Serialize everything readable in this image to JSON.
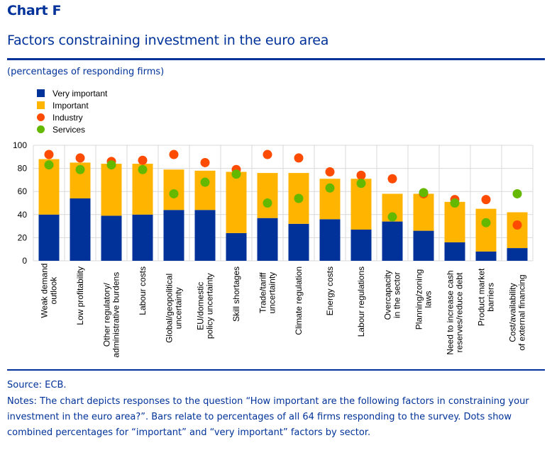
{
  "header": {
    "chart_label": "Chart F",
    "title": "Factors constraining investment in the euro area",
    "units": "(percentages of responding firms)"
  },
  "colors": {
    "very_important": "#003299",
    "important": "#FFB400",
    "industry": "#FF4B00",
    "services": "#65B800",
    "grid": "#D9D9D9",
    "brand_text": "#003299"
  },
  "legend": [
    {
      "label": "Very important",
      "shape": "square",
      "series": "very_important"
    },
    {
      "label": "Important",
      "shape": "square",
      "series": "important"
    },
    {
      "label": "Industry",
      "shape": "dot",
      "series": "industry"
    },
    {
      "label": "Services",
      "shape": "dot",
      "series": "services"
    }
  ],
  "chart_data": {
    "type": "bar",
    "stacked": true,
    "title": "Factors constraining investment in the euro area",
    "xlabel": "",
    "ylabel": "percentages of responding firms",
    "ylim": [
      0,
      100
    ],
    "yticks": [
      0,
      20,
      40,
      60,
      80,
      100
    ],
    "grid": true,
    "legend_position": "top-left",
    "categories": [
      [
        "Weak demand",
        "outlook"
      ],
      [
        "Low profitability"
      ],
      [
        "Other regulatory/",
        "administrative burdens"
      ],
      [
        "Labour costs"
      ],
      [
        "Global/geopolitical",
        "uncertainty"
      ],
      [
        "EU/domestic",
        "policy uncertainty"
      ],
      [
        "Skill shortages"
      ],
      [
        "Trade/tariff",
        "uncertainty"
      ],
      [
        "Climate regulation"
      ],
      [
        "Energy costs"
      ],
      [
        "Labour regulations"
      ],
      [
        "Overcapacity",
        "in the sector"
      ],
      [
        "Planning/zoning",
        "laws"
      ],
      [
        "Need to increase cash",
        "reserves/reduce debt"
      ],
      [
        "Product market",
        "barriers"
      ],
      [
        "Cost/availability",
        "of external financing"
      ]
    ],
    "series": [
      {
        "name": "Very important",
        "kind": "bar",
        "values": [
          40,
          54,
          39,
          40,
          44,
          44,
          24,
          37,
          32,
          36,
          27,
          34,
          26,
          16,
          8,
          11
        ]
      },
      {
        "name": "Important",
        "kind": "bar",
        "values": [
          48,
          31,
          45,
          44,
          35,
          34,
          53,
          39,
          44,
          35,
          44,
          24,
          32,
          35,
          37,
          31
        ]
      },
      {
        "name": "Industry",
        "kind": "dot",
        "values": [
          92,
          89,
          86,
          87,
          92,
          85,
          79,
          92,
          89,
          77,
          74,
          71,
          58,
          53,
          53,
          31
        ]
      },
      {
        "name": "Services",
        "kind": "dot",
        "values": [
          83,
          79,
          83,
          79,
          58,
          68,
          75,
          50,
          54,
          63,
          67,
          38,
          59,
          50,
          33,
          58
        ]
      }
    ]
  },
  "footer": {
    "source": "Source: ECB.",
    "notes": "Notes: The chart depicts responses to the question “How important are the following factors in constraining your investment in the euro area?”. Bars relate to percentages of all 64 firms responding to the survey. Dots show combined percentages for “important” and “very important” factors by sector."
  }
}
